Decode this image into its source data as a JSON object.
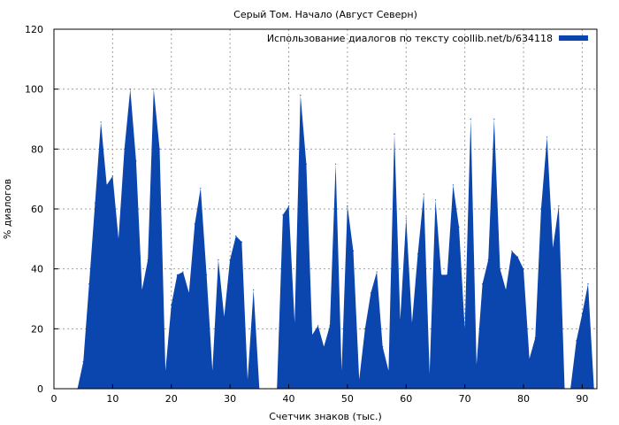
{
  "chart_data": {
    "type": "area",
    "title": "Серый Том. Начало (Август Северн)",
    "xlabel": "Счетчик знаков (тыс.)",
    "ylabel": "% диалогов",
    "xlim": [
      0,
      92.5
    ],
    "ylim": [
      0,
      120
    ],
    "xticks": [
      0,
      10,
      20,
      30,
      40,
      50,
      60,
      70,
      80,
      90
    ],
    "yticks": [
      0,
      20,
      40,
      60,
      80,
      100,
      120
    ],
    "grid": true,
    "legend_position": "top-right",
    "series": [
      {
        "name": "Использование диалогов по тексту coollib.net/b/634118",
        "color": "#0b45ae",
        "x": [
          0,
          4,
          5,
          6,
          7,
          8,
          9,
          10,
          11,
          12,
          13,
          14,
          15,
          16,
          17,
          18,
          19,
          20,
          21,
          22,
          23,
          24,
          25,
          26,
          27,
          28,
          29,
          30,
          31,
          32,
          33,
          34,
          35,
          36,
          37,
          38,
          39,
          40,
          41,
          42,
          43,
          44,
          45,
          46,
          47,
          48,
          49,
          50,
          51,
          52,
          53,
          54,
          55,
          56,
          57,
          58,
          59,
          60,
          61,
          62,
          63,
          64,
          65,
          66,
          67,
          68,
          69,
          70,
          71,
          72,
          73,
          74,
          75,
          76,
          77,
          78,
          79,
          80,
          81,
          82,
          83,
          84,
          85,
          86,
          87,
          88,
          89,
          90,
          91,
          92
        ],
        "y": [
          0,
          0,
          9,
          35,
          62,
          89,
          68,
          71,
          50,
          80,
          100,
          76,
          33,
          43,
          100,
          80,
          6,
          28,
          38,
          39,
          32,
          55,
          67,
          38,
          6,
          43,
          24,
          43,
          51,
          49,
          3,
          33,
          0,
          0,
          0,
          0,
          58,
          61,
          22,
          98,
          75,
          18,
          21,
          14,
          21,
          75,
          6,
          61,
          46,
          3,
          20,
          32,
          39,
          14,
          6,
          85,
          23,
          57,
          22,
          45,
          65,
          5,
          63,
          38,
          38,
          68,
          54,
          20,
          90,
          8,
          35,
          43,
          90,
          40,
          33,
          46,
          44,
          40,
          10,
          17,
          60,
          84,
          47,
          61,
          0,
          0,
          16,
          25,
          35,
          0
        ]
      }
    ]
  }
}
